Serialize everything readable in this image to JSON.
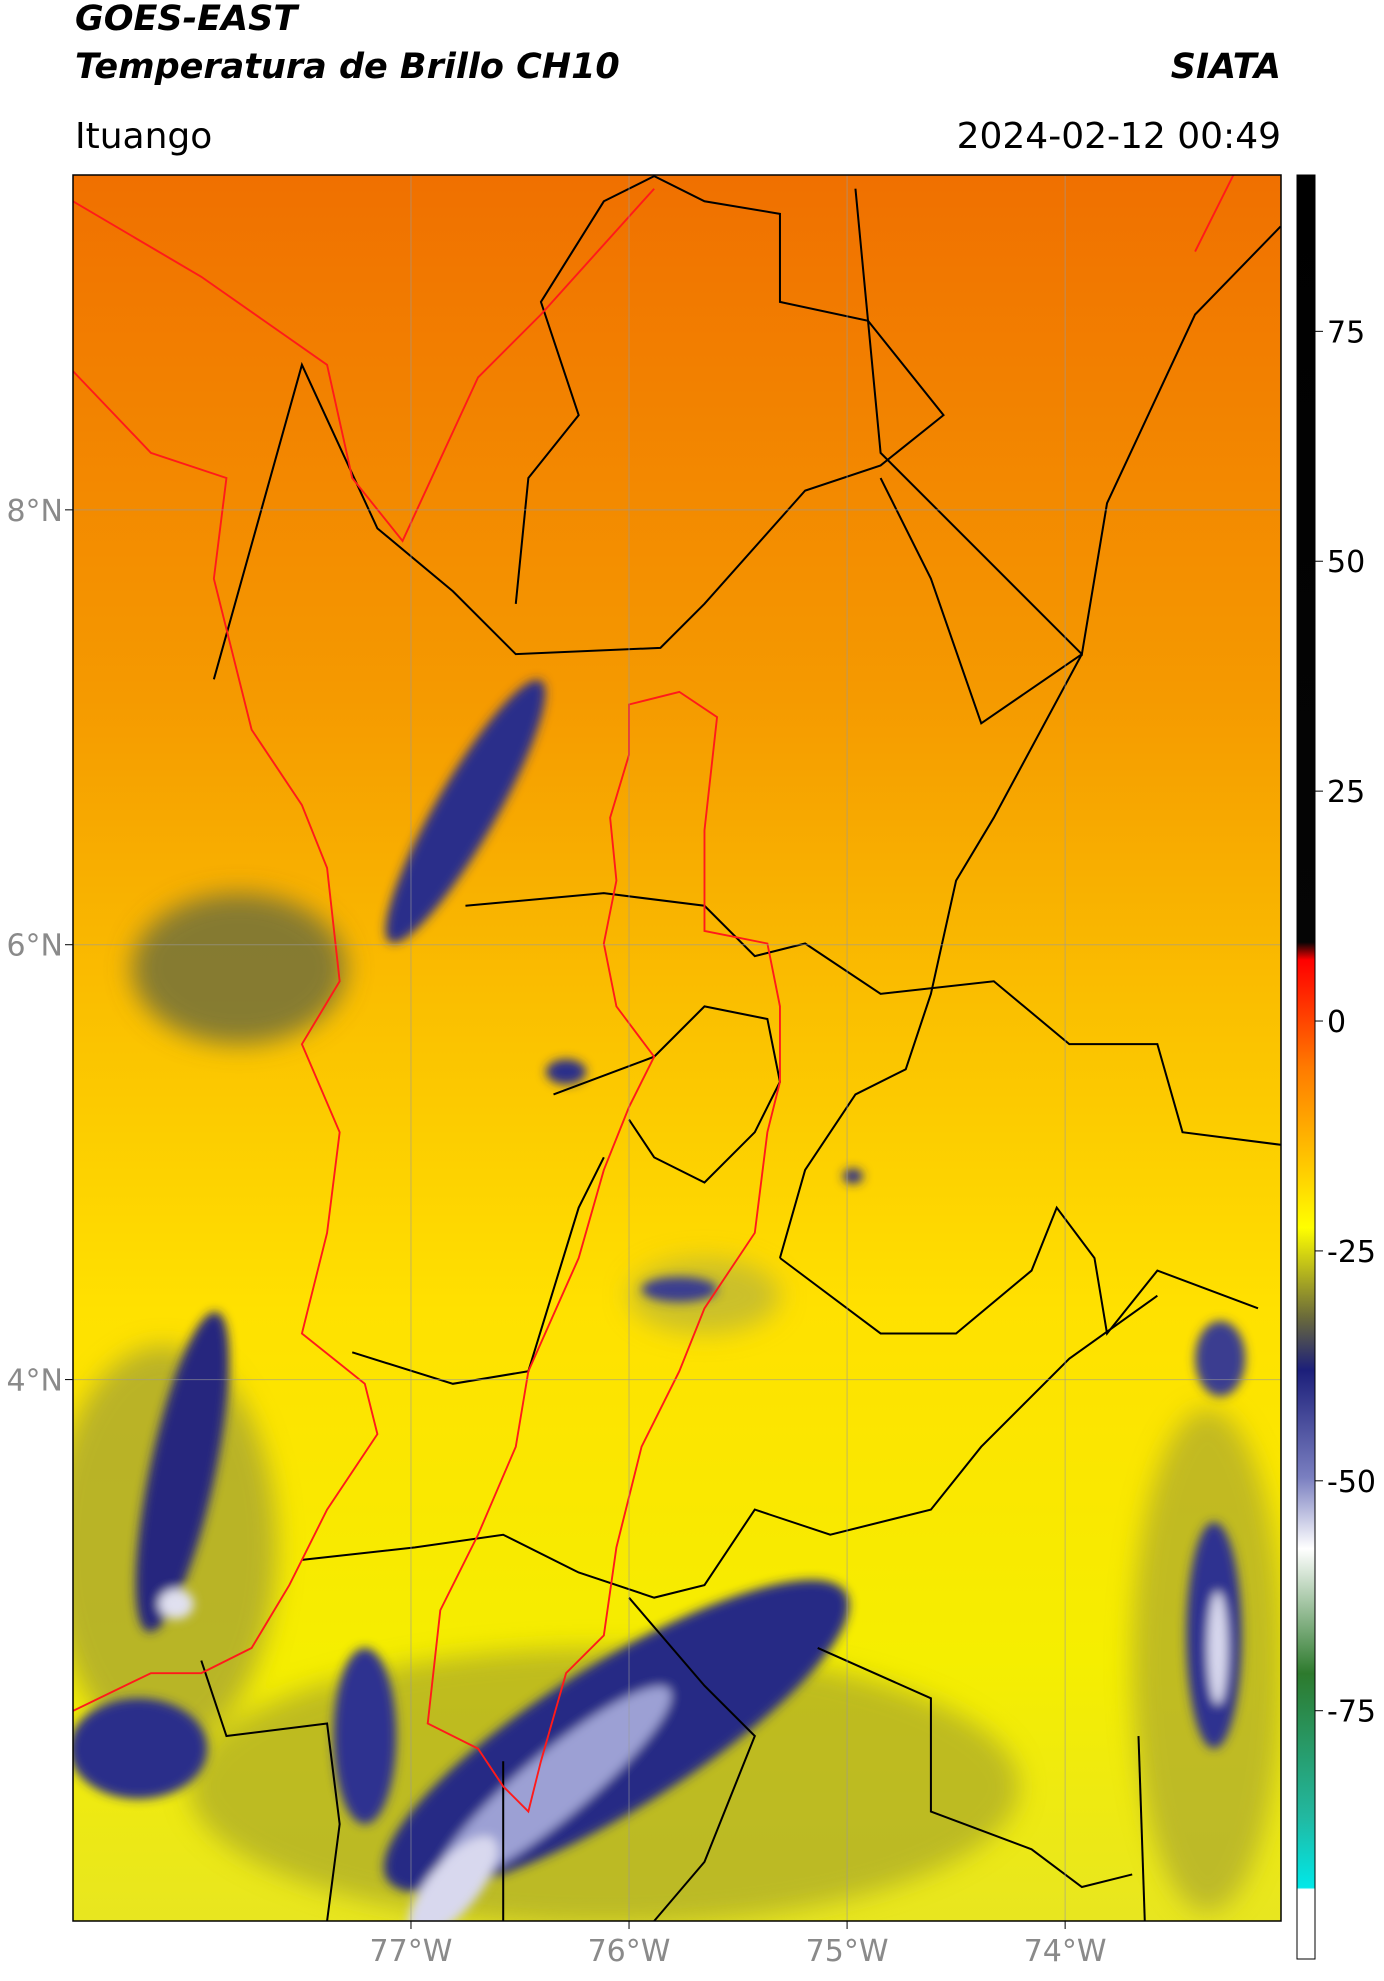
{
  "chart_data": {
    "type": "map",
    "title": "GOES-EAST",
    "subtitle": "Temperatura de Brillo CH10",
    "source": "SIATA",
    "location": "Ituango",
    "datetime": "2024-02-12 00:49",
    "xlim": [
      -78.55,
      -73.01
    ],
    "ylim": [
      1.51,
      9.54
    ],
    "xticks": [
      {
        "value": -77,
        "label": "77°W"
      },
      {
        "value": -76,
        "label": "76°W"
      },
      {
        "value": -75,
        "label": "75°W"
      },
      {
        "value": -74,
        "label": "74°W"
      }
    ],
    "yticks": [
      {
        "value": 8,
        "label": "8°N"
      },
      {
        "value": 6,
        "label": "6°N"
      },
      {
        "value": 4,
        "label": "4°N"
      }
    ],
    "grid": true,
    "colorbar": {
      "lim": [
        -102,
        92
      ],
      "ticks": [
        75,
        50,
        25,
        0,
        -25,
        -50,
        -75
      ]
    }
  }
}
